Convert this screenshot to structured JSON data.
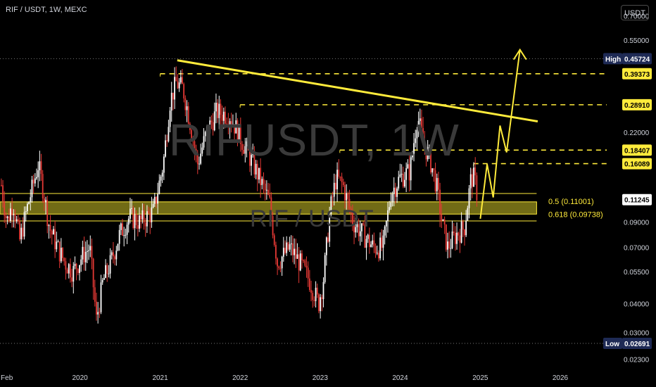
{
  "header": {
    "symbol_info": "RIF / USDT, 1W, MEXC",
    "currency": "USDT"
  },
  "watermark": {
    "main": "RIFUSDT, 1W",
    "sub": "RIF / USDT"
  },
  "colors": {
    "up": "#ffffff",
    "down": "#e53935",
    "accent": "#ffeb3b",
    "grid": "#5a5a5a",
    "text": "#d1d4dc",
    "badge_bg": "#1e2a55"
  },
  "chart_data": {
    "type": "candlestick",
    "y_scale": "log",
    "y_range": [
      0.0215,
      0.82
    ],
    "x_range": [
      "2019-01-01",
      "2026-08-01"
    ],
    "y_ticks": [
      {
        "value": 0.7,
        "label": "0.70000"
      },
      {
        "value": 0.55,
        "label": "0.55000"
      },
      {
        "value": 0.22,
        "label": "0.22000"
      },
      {
        "value": 0.09,
        "label": "0.09000"
      },
      {
        "value": 0.07,
        "label": "0.07000"
      },
      {
        "value": 0.055,
        "label": "0.05500"
      },
      {
        "value": 0.04,
        "label": "0.04000"
      },
      {
        "value": 0.03,
        "label": "0.03000"
      },
      {
        "value": 0.023,
        "label": "0.02300"
      }
    ],
    "x_ticks": [
      {
        "date": "2019-02-01",
        "label": "Feb"
      },
      {
        "date": "2020-01-01",
        "label": "2020"
      },
      {
        "date": "2021-01-01",
        "label": "2021"
      },
      {
        "date": "2022-01-01",
        "label": "2022"
      },
      {
        "date": "2023-01-01",
        "label": "2023"
      },
      {
        "date": "2024-01-01",
        "label": "2024"
      },
      {
        "date": "2025-01-01",
        "label": "2025"
      },
      {
        "date": "2026-01-01",
        "label": "2026"
      }
    ],
    "high": {
      "label": "High",
      "value": 0.45724,
      "text": "0.45724"
    },
    "low": {
      "label": "Low",
      "value": 0.02691,
      "text": "0.02691"
    },
    "current_price": {
      "value": 0.11245,
      "text": "0.11245"
    },
    "resistance_levels": [
      {
        "value": 0.39373,
        "text": "0.39373",
        "start": "2021-01-01"
      },
      {
        "value": 0.2891,
        "text": "0.28910",
        "start": "2022-01-01"
      },
      {
        "value": 0.18407,
        "text": "0.18407",
        "start": "2023-04-01"
      },
      {
        "value": 0.16089,
        "text": "0.16089",
        "start": "2024-12-01"
      }
    ],
    "fib_zone": {
      "top": 0.11001,
      "bottom": 0.09738,
      "top_label": "0.5 (0.11001)",
      "bottom_label": "0.618 (0.09738)",
      "start": "2019-01-01",
      "end": "2025-09-15"
    },
    "trendline": {
      "from": {
        "date": "2021-03-20",
        "value": 0.45
      },
      "to": {
        "date": "2025-09-20",
        "value": 0.245
      }
    },
    "projection": [
      {
        "date": "2025-01-01",
        "value": 0.093
      },
      {
        "date": "2025-02-01",
        "value": 0.16
      },
      {
        "date": "2025-03-01",
        "value": 0.115
      },
      {
        "date": "2025-04-01",
        "value": 0.235
      },
      {
        "date": "2025-05-01",
        "value": 0.18
      },
      {
        "date": "2025-07-01",
        "value": 0.5
      }
    ],
    "price_path": [
      [
        "2019-01-07",
        0.13
      ],
      [
        "2019-02-01",
        0.09
      ],
      [
        "2019-03-01",
        0.11
      ],
      [
        "2019-04-01",
        0.075
      ],
      [
        "2019-05-01",
        0.1
      ],
      [
        "2019-06-01",
        0.13
      ],
      [
        "2019-06-25",
        0.16
      ],
      [
        "2019-07-20",
        0.12
      ],
      [
        "2019-08-15",
        0.085
      ],
      [
        "2019-09-20",
        0.07
      ],
      [
        "2019-10-25",
        0.06
      ],
      [
        "2019-12-01",
        0.055
      ],
      [
        "2020-01-15",
        0.065
      ],
      [
        "2020-02-15",
        0.07
      ],
      [
        "2020-03-16",
        0.034
      ],
      [
        "2020-04-15",
        0.05
      ],
      [
        "2020-05-20",
        0.06
      ],
      [
        "2020-07-01",
        0.08
      ],
      [
        "2020-08-15",
        0.095
      ],
      [
        "2020-10-01",
        0.09
      ],
      [
        "2020-12-01",
        0.1
      ],
      [
        "2021-01-15",
        0.16
      ],
      [
        "2021-02-15",
        0.3
      ],
      [
        "2021-03-15",
        0.36
      ],
      [
        "2021-04-15",
        0.34
      ],
      [
        "2021-05-15",
        0.25
      ],
      [
        "2021-06-20",
        0.16
      ],
      [
        "2021-08-01",
        0.22
      ],
      [
        "2021-09-15",
        0.27
      ],
      [
        "2021-11-15",
        0.26
      ],
      [
        "2022-01-01",
        0.21
      ],
      [
        "2022-03-15",
        0.15
      ],
      [
        "2022-05-15",
        0.11
      ],
      [
        "2022-06-20",
        0.06
      ],
      [
        "2022-08-15",
        0.07
      ],
      [
        "2022-10-01",
        0.06
      ],
      [
        "2022-11-15",
        0.05
      ],
      [
        "2022-12-25",
        0.04
      ],
      [
        "2023-01-15",
        0.05
      ],
      [
        "2023-02-15",
        0.1
      ],
      [
        "2023-03-15",
        0.14
      ],
      [
        "2023-04-15",
        0.13
      ],
      [
        "2023-06-01",
        0.09
      ],
      [
        "2023-07-15",
        0.08
      ],
      [
        "2023-09-01",
        0.07
      ],
      [
        "2023-10-15",
        0.07
      ],
      [
        "2023-11-20",
        0.12
      ],
      [
        "2024-01-01",
        0.14
      ],
      [
        "2024-02-15",
        0.15
      ],
      [
        "2024-03-20",
        0.26
      ],
      [
        "2024-04-15",
        0.2
      ],
      [
        "2024-05-15",
        0.17
      ],
      [
        "2024-06-15",
        0.13
      ],
      [
        "2024-07-10",
        0.09
      ],
      [
        "2024-08-05",
        0.07
      ],
      [
        "2024-09-15",
        0.08
      ],
      [
        "2024-10-20",
        0.085
      ],
      [
        "2024-11-20",
        0.14
      ],
      [
        "2024-12-05",
        0.14
      ],
      [
        "2024-12-20",
        0.115
      ]
    ]
  }
}
